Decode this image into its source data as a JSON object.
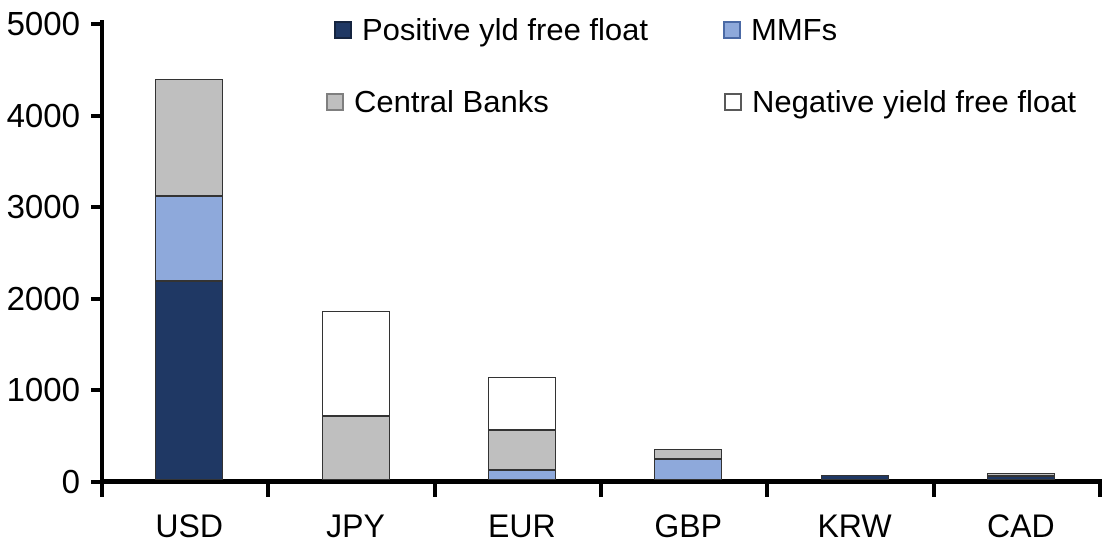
{
  "chart_data": {
    "type": "bar",
    "stacked": true,
    "title": "",
    "xlabel": "",
    "ylabel": "",
    "categories": [
      "USD",
      "JPY",
      "EUR",
      "GBP",
      "KRW",
      "CAD"
    ],
    "series": [
      {
        "name": "Positive yld free float",
        "color": "#1F3864",
        "swatch_border": "#15243F",
        "values": [
          2170,
          0,
          0,
          0,
          50,
          40
        ]
      },
      {
        "name": "MMFs",
        "color": "#8EA9DB",
        "swatch_border": "#4A69A5",
        "values": [
          930,
          0,
          110,
          225,
          0,
          0
        ]
      },
      {
        "name": "Central Banks",
        "color": "#BFBFBF",
        "swatch_border": "#7F7F7F",
        "values": [
          1280,
          700,
          440,
          115,
          0,
          40
        ]
      },
      {
        "name": "Negative yield free float",
        "color": "#FFFFFF",
        "swatch_border": "#595959",
        "values": [
          0,
          1150,
          570,
          0,
          0,
          0
        ]
      }
    ],
    "totals": [
      4380,
      1850,
      1120,
      340,
      50,
      80
    ],
    "ylim": [
      0,
      5000
    ],
    "yticks": [
      0,
      1000,
      2000,
      3000,
      4000,
      5000
    ],
    "grid": false,
    "legend_position": "top",
    "segment_border_color": "#333333",
    "axis_color": "#000000"
  }
}
